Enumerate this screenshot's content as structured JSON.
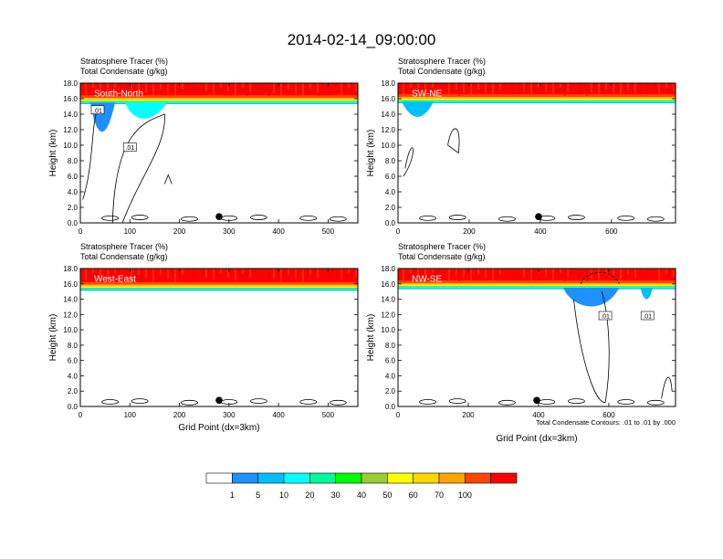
{
  "title": "2014-02-14_09:00:00",
  "footer_note": "Total Condensate Contours: .01 to .01 by .000",
  "colorbar": {
    "ticks": [
      "1",
      "5",
      "10",
      "20",
      "30",
      "40",
      "50",
      "60",
      "70",
      "100"
    ],
    "colors": [
      "#ffffff",
      "#1e90ff",
      "#00bfff",
      "#00ffff",
      "#00fa9a",
      "#00ff00",
      "#9acd32",
      "#ffff00",
      "#ffd700",
      "#ffa500",
      "#ff4500",
      "#ff0000"
    ]
  },
  "chart_data": [
    {
      "type": "heatmap",
      "panel_label": "South-North",
      "subtitle_1": "Stratosphere Tracer   (%)",
      "subtitle_2": "Total Condensate   (g/kg)",
      "ylabel": "Height (km)",
      "xlabel": "",
      "xlim": [
        0,
        560
      ],
      "ylim": [
        0,
        18
      ],
      "x_ticks": [
        "0",
        "100",
        "200",
        "300",
        "400",
        "500"
      ],
      "y_ticks": [
        "0.0",
        "2.0",
        "4.0",
        "6.0",
        "8.0",
        "10.0",
        "12.0",
        "14.0",
        "16.0",
        "18.0"
      ],
      "contour_labels": [
        ".01",
        ".01"
      ],
      "tropopause_km": 15.5,
      "marker_x": 280
    },
    {
      "type": "heatmap",
      "panel_label": "SW-NE",
      "subtitle_1": "Stratosphere Tracer   (%)",
      "subtitle_2": "Total Condensate   (g/kg)",
      "ylabel": "Height (km)",
      "xlabel": "",
      "xlim": [
        0,
        780
      ],
      "ylim": [
        0,
        18
      ],
      "x_ticks": [
        "0",
        "200",
        "400",
        "600"
      ],
      "y_ticks": [
        "0.0",
        "2.0",
        "4.0",
        "6.0",
        "8.0",
        "10.0",
        "12.0",
        "14.0",
        "16.0",
        "18.0"
      ],
      "contour_labels": [],
      "tropopause_km": 15.6,
      "marker_x": 395
    },
    {
      "type": "heatmap",
      "panel_label": "West-East",
      "subtitle_1": "Stratosphere Tracer   (%)",
      "subtitle_2": "Total Condensate   (g/kg)",
      "ylabel": "Height (km)",
      "xlabel": "Grid Point (dx=3km)",
      "xlim": [
        0,
        560
      ],
      "ylim": [
        0,
        18
      ],
      "x_ticks": [
        "0",
        "100",
        "200",
        "300",
        "400",
        "500"
      ],
      "y_ticks": [
        "0.0",
        "2.0",
        "4.0",
        "6.0",
        "8.0",
        "10.0",
        "12.0",
        "14.0",
        "16.0",
        "18.0"
      ],
      "contour_labels": [],
      "tropopause_km": 15.3,
      "marker_x": 280
    },
    {
      "type": "heatmap",
      "panel_label": "NW-SE",
      "subtitle_1": "Stratosphere Tracer   (%)",
      "subtitle_2": "Total Condensate   (g/kg)",
      "ylabel": "Height (km)",
      "xlabel": "Grid Point (dx=3km)",
      "xlim": [
        0,
        790
      ],
      "ylim": [
        0,
        18
      ],
      "x_ticks": [
        "0",
        "200",
        "400",
        "600"
      ],
      "y_ticks": [
        "0.0",
        "2.0",
        "4.0",
        "6.0",
        "8.0",
        "10.0",
        "12.0",
        "14.0",
        "16.0",
        "18.0"
      ],
      "contour_labels": [
        ".01",
        ".01"
      ],
      "tropopause_km": 15.5,
      "marker_x": 395
    }
  ]
}
